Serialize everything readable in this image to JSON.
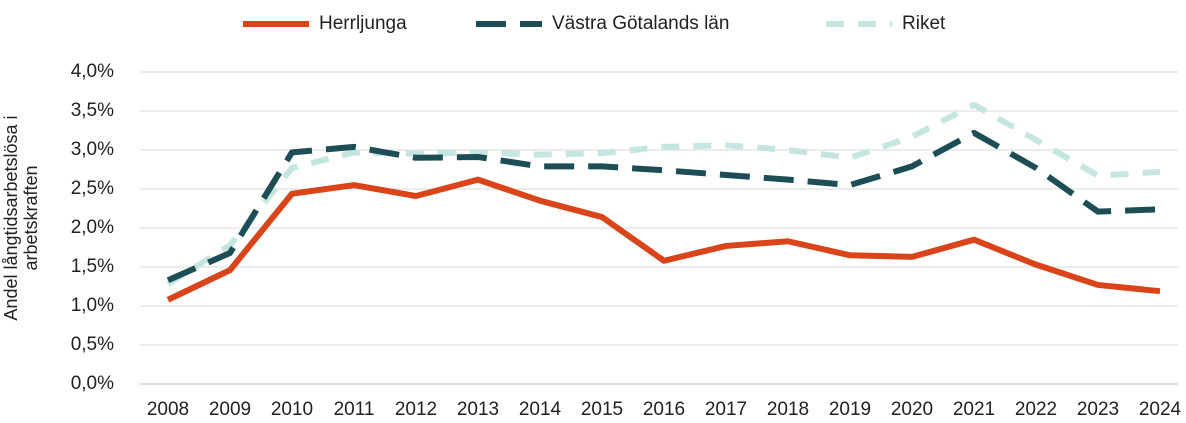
{
  "chart_data": {
    "type": "line",
    "y_label": "Andel långtidsarbetslösa i arbetskraften",
    "categories": [
      "2008",
      "2009",
      "2010",
      "2011",
      "2012",
      "2013",
      "2014",
      "2015",
      "2016",
      "2017",
      "2018",
      "2019",
      "2020",
      "2021",
      "2022",
      "2023",
      "2024"
    ],
    "series": [
      {
        "name": "Herrljunga",
        "color": "#d9441a",
        "dash": "solid",
        "values": [
          1.08,
          1.46,
          2.44,
          2.55,
          2.41,
          2.62,
          2.35,
          2.14,
          1.58,
          1.77,
          1.83,
          1.65,
          1.63,
          1.85,
          1.53,
          1.27,
          1.19
        ]
      },
      {
        "name": "Västra Götalands län",
        "color": "#1e4e55",
        "dash": "long",
        "values": [
          1.33,
          1.68,
          2.97,
          3.04,
          2.9,
          2.91,
          2.79,
          2.79,
          2.74,
          2.68,
          2.62,
          2.55,
          2.79,
          3.22,
          2.77,
          2.21,
          2.24
        ]
      },
      {
        "name": "Riket",
        "color": "#c5e6e0",
        "dash": "short",
        "values": [
          1.28,
          1.78,
          2.77,
          2.97,
          2.95,
          2.97,
          2.94,
          2.96,
          3.04,
          3.06,
          3.0,
          2.9,
          3.17,
          3.58,
          3.13,
          2.67,
          2.72
        ]
      }
    ],
    "ylim": [
      0,
      4
    ],
    "yticks": [
      {
        "value": 0,
        "label": "0,0%"
      },
      {
        "value": 0.5,
        "label": "0,5%"
      },
      {
        "value": 1,
        "label": "1,0%"
      },
      {
        "value": 1.5,
        "label": "1,5%"
      },
      {
        "value": 2,
        "label": "2,0%"
      },
      {
        "value": 2.5,
        "label": "2,5%"
      },
      {
        "value": 3,
        "label": "3,0%"
      },
      {
        "value": 3.5,
        "label": "3,5%"
      },
      {
        "value": 4,
        "label": "4,0%"
      }
    ],
    "grid": true,
    "legend": "top"
  }
}
